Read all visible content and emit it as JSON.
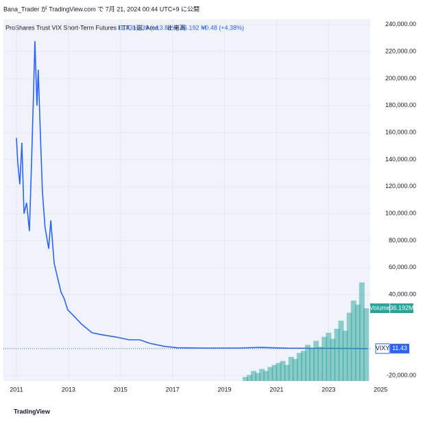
{
  "header": "Bana_Trader が TradingView.com で 7月 21, 2024 00:44 UTC+9 に公開",
  "legend": {
    "symbol": "ProShares Trust VIX Short-Term Futures ETF, 1週, Arca",
    "last": "11.43",
    "change": "+1.39 (+13.84%)",
    "volume_title": "出来高",
    "volume": "36.192 M",
    "volume_change": "+0.48 (+4.38%)"
  },
  "price_tag": {
    "name": "VIXY",
    "value": "11.43"
  },
  "volume_tag": {
    "name": "Volume",
    "value": "36.192M"
  },
  "footer": "TradingView",
  "chart_data": {
    "type": "line",
    "xlim": [
      2010.5,
      2024.6
    ],
    "xticks": [
      2011,
      2013,
      2015,
      2017,
      2019,
      2021,
      2023,
      2025
    ],
    "ylim": [
      -24000,
      244000
    ],
    "yticks": [
      {
        "value": -20000,
        "label": "-20,000.00"
      },
      {
        "value": 40000,
        "label": "40,000.00"
      },
      {
        "value": 60000,
        "label": "60,000.00"
      },
      {
        "value": 80000,
        "label": "80,000.00"
      },
      {
        "value": 100000,
        "label": "100,000.00"
      },
      {
        "value": 120000,
        "label": "120,000.00"
      },
      {
        "value": 140000,
        "label": "140,000.00"
      },
      {
        "value": 160000,
        "label": "160,000.00"
      },
      {
        "value": 180000,
        "label": "180,000.00"
      },
      {
        "value": 200000,
        "label": "200,000.00"
      },
      {
        "value": 220000,
        "label": "220,000.00"
      },
      {
        "value": 240000,
        "label": "240,000.00"
      }
    ],
    "y2lim": [
      0,
      180
    ],
    "grid": true,
    "series": [
      {
        "name": "VIXY",
        "color": "#2962ff",
        "x": [
          2011.0,
          2011.05,
          2011.13,
          2011.21,
          2011.29,
          2011.39,
          2011.5,
          2011.58,
          2011.66,
          2011.71,
          2011.79,
          2011.84,
          2011.92,
          2012.0,
          2012.1,
          2012.24,
          2012.32,
          2012.45,
          2012.58,
          2012.71,
          2012.84,
          2012.97,
          2013.24,
          2013.5,
          2013.9,
          2014.29,
          2014.82,
          2015.34,
          2015.74,
          2016.13,
          2016.66,
          2017.18,
          2018.24,
          2019.55,
          2020.34,
          2021.39,
          2022.97,
          2024.5
        ],
        "values": [
          156000,
          137600,
          121700,
          152500,
          100000,
          108000,
          87000,
          137600,
          190600,
          227800,
          180000,
          206600,
          158800,
          116000,
          89800,
          74000,
          95000,
          63300,
          52700,
          42000,
          36800,
          28800,
          23500,
          18200,
          11800,
          10200,
          8600,
          6500,
          6500,
          3900,
          1800,
          600,
          400,
          400,
          900,
          300,
          200,
          11.43
        ]
      },
      {
        "name": "Volume",
        "color": "#26a69a",
        "axis": "y2",
        "type": "bar",
        "x": [
          2019.8,
          2019.96,
          2020.12,
          2020.28,
          2020.44,
          2020.6,
          2020.76,
          2020.92,
          2021.08,
          2021.24,
          2021.4,
          2021.56,
          2021.72,
          2021.88,
          2022.04,
          2022.2,
          2022.36,
          2022.52,
          2022.68,
          2022.84,
          2023.0,
          2023.16,
          2023.32,
          2023.48,
          2023.64,
          2023.8,
          2023.96,
          2024.12,
          2024.28,
          2024.44
        ],
        "values": [
          2,
          3,
          5,
          4,
          6,
          5,
          7,
          8,
          9,
          10,
          8,
          12,
          11,
          14,
          15,
          18,
          16,
          20,
          17,
          22,
          24,
          21,
          26,
          30,
          25,
          34,
          40,
          38,
          49,
          36.192
        ]
      }
    ]
  }
}
